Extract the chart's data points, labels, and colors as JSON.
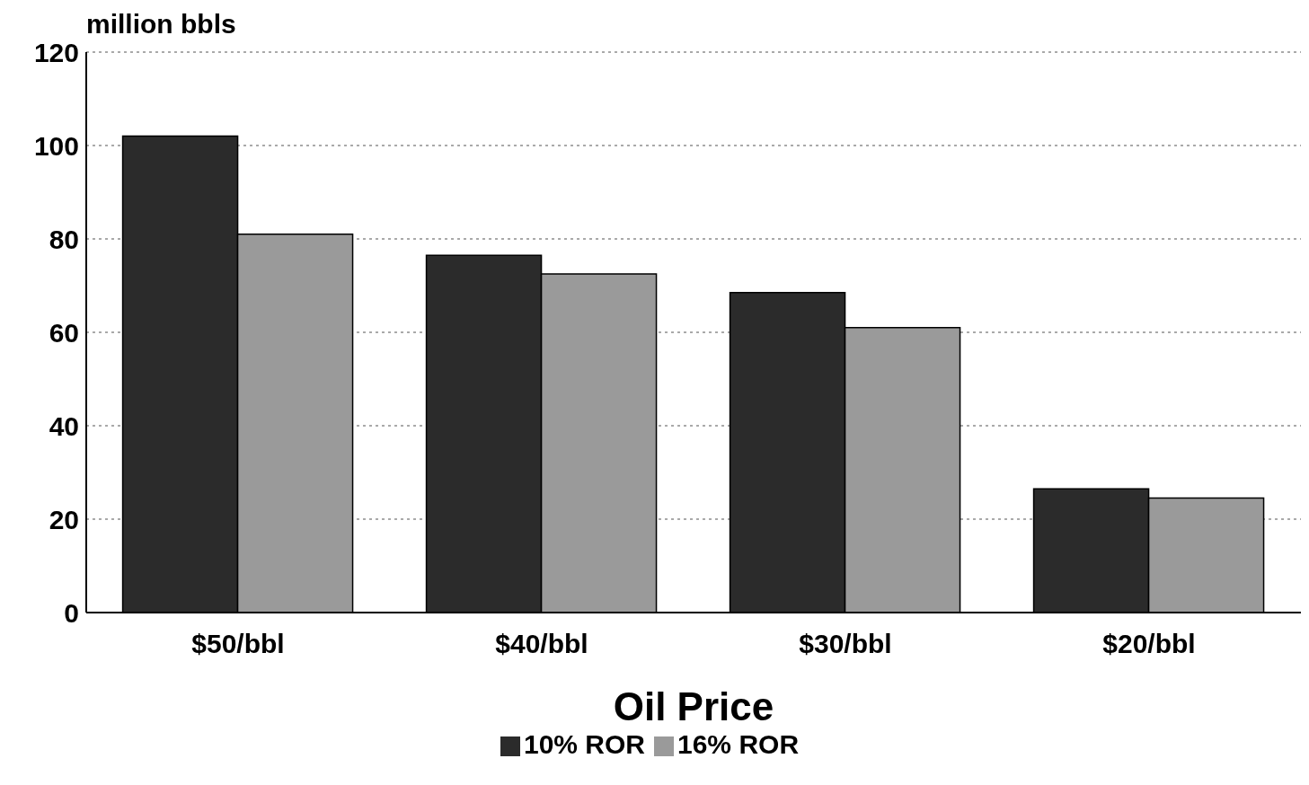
{
  "chart_data": {
    "type": "bar",
    "xlabel": "Oil Price",
    "ylabel": "million bbls",
    "categories": [
      "$50/bbl",
      "$40/bbl",
      "$30/bbl",
      "$20/bbl"
    ],
    "series": [
      {
        "name": "10% ROR",
        "color": "#2b2b2b",
        "values": [
          102,
          76.5,
          68.5,
          26.5
        ]
      },
      {
        "name": "16% ROR",
        "color": "#9a9a9a",
        "values": [
          81,
          72.5,
          61,
          24.5
        ]
      }
    ],
    "ylim": [
      0,
      120
    ],
    "yticks": [
      0,
      20,
      40,
      60,
      80,
      100,
      120
    ],
    "grid": "y",
    "legend": "bottom"
  }
}
